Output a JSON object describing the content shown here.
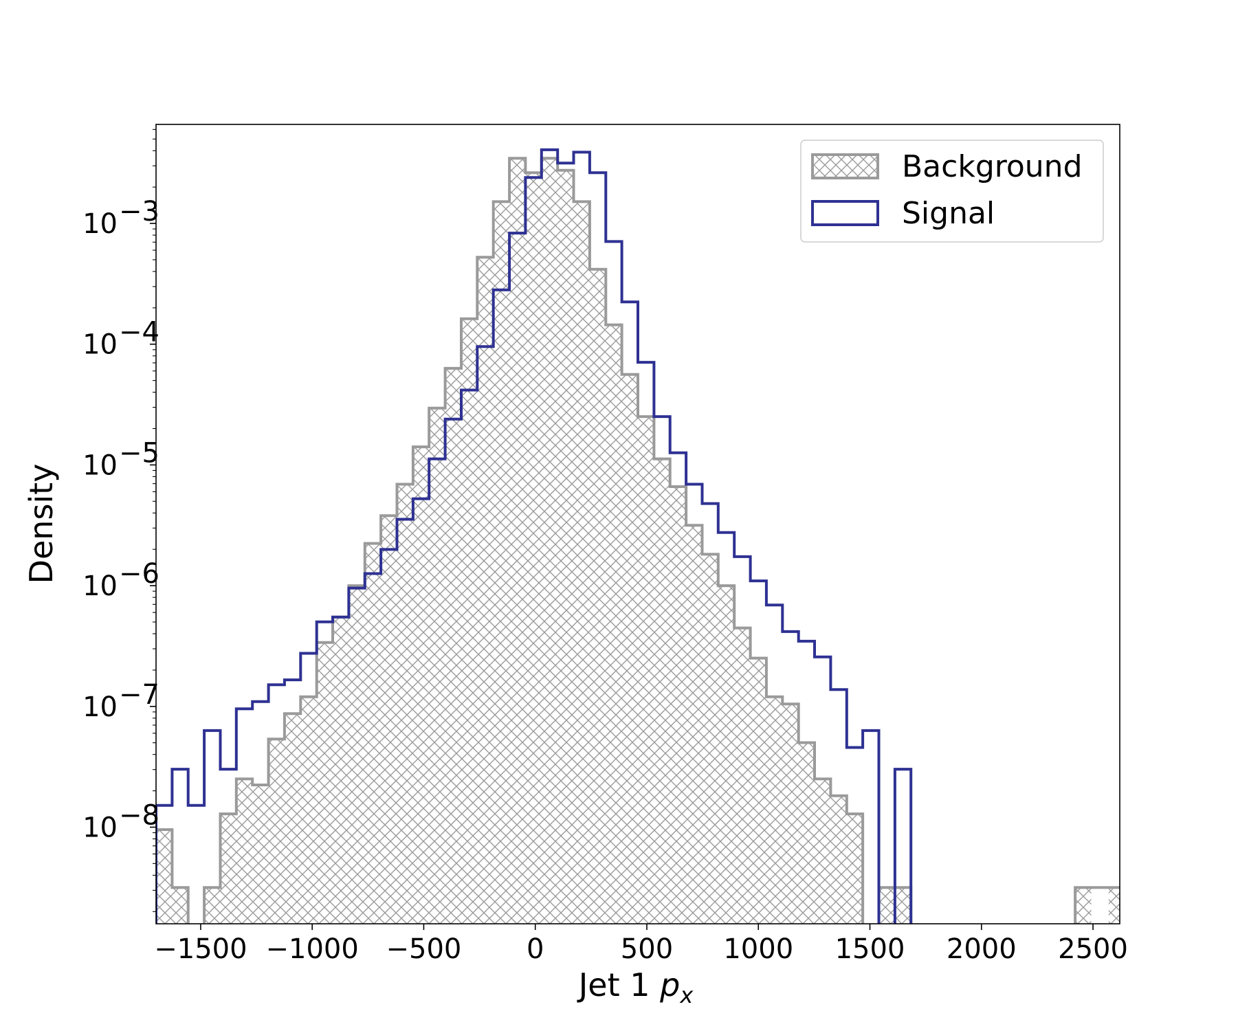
{
  "chart_data": {
    "type": "histogram",
    "xlabel": "Jet 1",
    "xlabel_var": "p",
    "xlabel_sub": "x",
    "ylabel": "Density",
    "yscale": "log",
    "xlim": [
      -1700,
      2620
    ],
    "ylim_log10": [
      -8.8,
      -2.18
    ],
    "grid": false,
    "legend_position": "upper right",
    "x_ticks": [
      {
        "value": -1500,
        "label": "−1500"
      },
      {
        "value": -1000,
        "label": "−1000"
      },
      {
        "value": -500,
        "label": "−500"
      },
      {
        "value": 0,
        "label": "0"
      },
      {
        "value": 500,
        "label": "500"
      },
      {
        "value": 1000,
        "label": "1000"
      },
      {
        "value": 1500,
        "label": "1500"
      },
      {
        "value": 2000,
        "label": "2000"
      },
      {
        "value": 2500,
        "label": "2500"
      }
    ],
    "y_ticks": [
      {
        "exp": -3,
        "base": "10",
        "sup": "−3"
      },
      {
        "exp": -4,
        "base": "10",
        "sup": "−4"
      },
      {
        "exp": -5,
        "base": "10",
        "sup": "−5"
      },
      {
        "exp": -6,
        "base": "10",
        "sup": "−6"
      },
      {
        "exp": -7,
        "base": "10",
        "sup": "−7"
      },
      {
        "exp": -8,
        "base": "10",
        "sup": "−8"
      }
    ],
    "bin_width": 72,
    "series": [
      {
        "name": "Background",
        "style": "hatched",
        "color": "#9a9a9a",
        "bins": [
          [
            -1700,
            -1628,
            -8.02
          ],
          [
            -1628,
            -1556,
            -8.5
          ],
          [
            -1556,
            -1484,
            null
          ],
          [
            -1484,
            -1412,
            -8.5
          ],
          [
            -1412,
            -1340,
            -7.89
          ],
          [
            -1340,
            -1268,
            -7.6
          ],
          [
            -1268,
            -1196,
            -7.65
          ],
          [
            -1196,
            -1124,
            -7.27
          ],
          [
            -1124,
            -1052,
            -7.06
          ],
          [
            -1052,
            -980,
            -6.92
          ],
          [
            -980,
            -908,
            -6.47
          ],
          [
            -908,
            -836,
            -6.26
          ],
          [
            -836,
            -764,
            -6.0
          ],
          [
            -764,
            -692,
            -5.65
          ],
          [
            -692,
            -620,
            -5.42
          ],
          [
            -620,
            -548,
            -5.16
          ],
          [
            -548,
            -476,
            -4.85
          ],
          [
            -476,
            -404,
            -4.53
          ],
          [
            -404,
            -332,
            -4.2
          ],
          [
            -332,
            -260,
            -3.79
          ],
          [
            -260,
            -188,
            -3.28
          ],
          [
            -188,
            -116,
            -2.82
          ],
          [
            -116,
            -44,
            -2.46
          ],
          [
            -44,
            28,
            -2.58
          ],
          [
            28,
            100,
            -2.46
          ],
          [
            100,
            172,
            -2.56
          ],
          [
            172,
            244,
            -2.82
          ],
          [
            244,
            316,
            -3.38
          ],
          [
            316,
            388,
            -3.84
          ],
          [
            388,
            460,
            -4.25
          ],
          [
            460,
            532,
            -4.6
          ],
          [
            532,
            604,
            -4.95
          ],
          [
            604,
            676,
            -5.18
          ],
          [
            676,
            748,
            -5.5
          ],
          [
            748,
            820,
            -5.74
          ],
          [
            820,
            892,
            -6.0
          ],
          [
            892,
            964,
            -6.35
          ],
          [
            964,
            1036,
            -6.6
          ],
          [
            1036,
            1108,
            -6.92
          ],
          [
            1108,
            1180,
            -6.98
          ],
          [
            1180,
            1252,
            -7.3
          ],
          [
            1252,
            1324,
            -7.6
          ],
          [
            1324,
            1396,
            -7.74
          ],
          [
            1396,
            1468,
            -7.89
          ],
          [
            1468,
            1540,
            null
          ],
          [
            1540,
            1612,
            -8.5
          ],
          [
            1612,
            1684,
            -8.5
          ]
        ],
        "extra_bins": [
          [
            2420,
            2492,
            -8.5
          ],
          [
            2570,
            2642,
            -8.5
          ]
        ]
      },
      {
        "name": "Signal",
        "style": "step",
        "color": "#2e3192",
        "bins": [
          [
            -1700,
            -1628,
            -7.82
          ],
          [
            -1628,
            -1556,
            -7.52
          ],
          [
            -1556,
            -1484,
            -7.82
          ],
          [
            -1484,
            -1412,
            -7.2
          ],
          [
            -1412,
            -1340,
            -7.52
          ],
          [
            -1340,
            -1268,
            -7.02
          ],
          [
            -1268,
            -1196,
            -6.96
          ],
          [
            -1196,
            -1124,
            -6.82
          ],
          [
            -1124,
            -1052,
            -6.78
          ],
          [
            -1052,
            -980,
            -6.56
          ],
          [
            -980,
            -908,
            -6.3
          ],
          [
            -908,
            -836,
            -6.26
          ],
          [
            -836,
            -764,
            -6.02
          ],
          [
            -764,
            -692,
            -5.9
          ],
          [
            -692,
            -620,
            -5.7
          ],
          [
            -620,
            -548,
            -5.45
          ],
          [
            -548,
            -476,
            -5.28
          ],
          [
            -476,
            -404,
            -4.95
          ],
          [
            -404,
            -332,
            -4.62
          ],
          [
            -332,
            -260,
            -4.38
          ],
          [
            -260,
            -188,
            -4.02
          ],
          [
            -188,
            -116,
            -3.55
          ],
          [
            -116,
            -44,
            -3.08
          ],
          [
            -44,
            28,
            -2.62
          ],
          [
            28,
            100,
            -2.39
          ],
          [
            100,
            172,
            -2.5
          ],
          [
            172,
            244,
            -2.41
          ],
          [
            244,
            316,
            -2.58
          ],
          [
            316,
            388,
            -3.15
          ],
          [
            388,
            460,
            -3.65
          ],
          [
            460,
            532,
            -4.15
          ],
          [
            532,
            604,
            -4.6
          ],
          [
            604,
            676,
            -4.9
          ],
          [
            676,
            748,
            -5.16
          ],
          [
            748,
            820,
            -5.32
          ],
          [
            820,
            892,
            -5.56
          ],
          [
            892,
            964,
            -5.76
          ],
          [
            964,
            1036,
            -5.96
          ],
          [
            1036,
            1108,
            -6.16
          ],
          [
            1108,
            1180,
            -6.38
          ],
          [
            1180,
            1252,
            -6.46
          ],
          [
            1252,
            1324,
            -6.59
          ],
          [
            1324,
            1396,
            -6.86
          ],
          [
            1396,
            1468,
            -7.34
          ],
          [
            1468,
            1540,
            -7.2
          ],
          [
            1540,
            1612,
            null
          ],
          [
            1612,
            1684,
            -7.52
          ]
        ]
      }
    ]
  }
}
